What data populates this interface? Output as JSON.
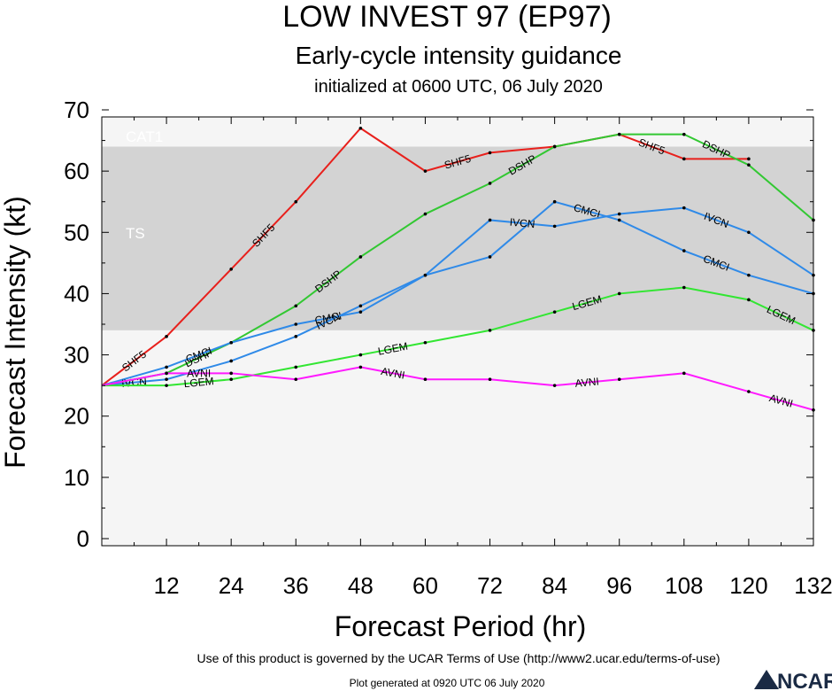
{
  "header": {
    "title": "LOW INVEST 97 (EP97)",
    "subtitle": "Early-cycle intensity guidance",
    "initialized": "initialized at 0600 UTC, 06 July 2020"
  },
  "footer": {
    "terms": "Use of this product is governed by the UCAR Terms of Use (http://www2.ucar.edu/terms-of-use)",
    "generated": "Plot generated at 0920 UTC   06 July 2020",
    "logo": "NCAR"
  },
  "chart_data": {
    "type": "line",
    "xlabel": "Forecast Period (hr)",
    "ylabel": "Forecast Intensity (kt)",
    "xlim": [
      0,
      132
    ],
    "ylim": [
      0,
      70
    ],
    "xticks": [
      12,
      24,
      36,
      48,
      60,
      72,
      84,
      96,
      108,
      120,
      132
    ],
    "yticks": [
      0,
      10,
      20,
      30,
      40,
      50,
      60,
      70
    ],
    "bands": [
      {
        "name": "CAT1",
        "from": 64,
        "to": 70,
        "color": "#f5f5f5"
      },
      {
        "name": "TS",
        "from": 34,
        "to": 64,
        "color": "#d3d3d3"
      },
      {
        "name": "",
        "from": 0,
        "to": 34,
        "color": "#f5f5f5"
      }
    ],
    "series": [
      {
        "name": "SHF5",
        "color": "#e8201c",
        "x": [
          0,
          12,
          24,
          36,
          48,
          60,
          72,
          84,
          96,
          108,
          120
        ],
        "values": [
          25,
          33,
          44,
          55,
          67,
          60,
          63,
          64,
          66,
          62,
          62
        ]
      },
      {
        "name": "DSHP",
        "color": "#32c832",
        "x": [
          0,
          12,
          24,
          36,
          48,
          60,
          72,
          84,
          96,
          108,
          120,
          132
        ],
        "values": [
          25,
          27,
          32,
          38,
          46,
          53,
          58,
          64,
          66,
          66,
          61,
          52
        ]
      },
      {
        "name": "CMCI",
        "color": "#2f8ae8",
        "x": [
          0,
          12,
          24,
          36,
          48,
          60,
          72,
          84,
          96,
          108,
          120,
          132
        ],
        "values": [
          25,
          28,
          32,
          35,
          37,
          43,
          46,
          55,
          52,
          47,
          43,
          40
        ]
      },
      {
        "name": "IVCN",
        "color": "#2f8ae8",
        "x": [
          0,
          12,
          24,
          36,
          48,
          60,
          72,
          84,
          96,
          108,
          120,
          132
        ],
        "values": [
          25,
          26,
          29,
          33,
          38,
          43,
          52,
          51,
          53,
          54,
          50,
          43
        ]
      },
      {
        "name": "LGEM",
        "color": "#32e632",
        "x": [
          0,
          12,
          24,
          36,
          48,
          60,
          72,
          84,
          96,
          108,
          120,
          132
        ],
        "values": [
          25,
          25,
          26,
          28,
          30,
          32,
          34,
          37,
          40,
          41,
          39,
          34
        ]
      },
      {
        "name": "AVNI",
        "color": "#ff1aff",
        "x": [
          0,
          12,
          24,
          36,
          48,
          60,
          72,
          84,
          96,
          108,
          120,
          132
        ],
        "values": [
          25,
          27,
          27,
          26,
          28,
          26,
          26,
          25,
          26,
          27,
          24,
          21
        ]
      }
    ]
  }
}
